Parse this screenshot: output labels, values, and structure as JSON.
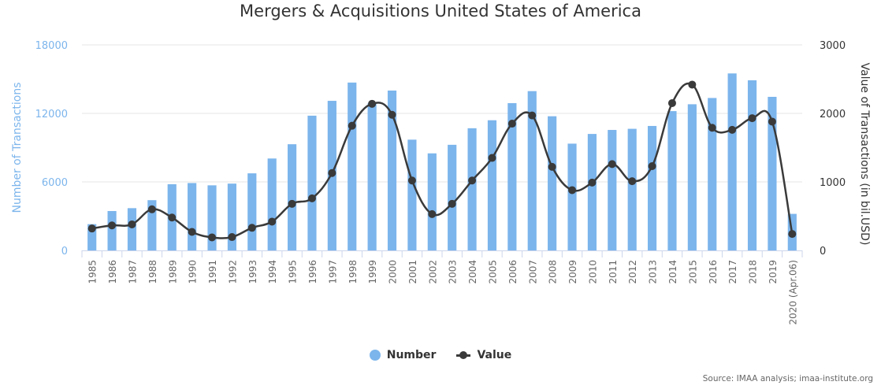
{
  "chart_data": {
    "type": "bar+line",
    "title": "Mergers & Acquisitions United States of America",
    "categories": [
      "1985",
      "1986",
      "1987",
      "1988",
      "1989",
      "1990",
      "1991",
      "1992",
      "1993",
      "1994",
      "1995",
      "1996",
      "1997",
      "1998",
      "1999",
      "2000",
      "2001",
      "2002",
      "2003",
      "2004",
      "2005",
      "2006",
      "2007",
      "2008",
      "2009",
      "2010",
      "2011",
      "2012",
      "2013",
      "2014",
      "2015",
      "2016",
      "2017",
      "2018",
      "2019",
      "2020 (Apr.06)"
    ],
    "y_left": {
      "label": "Number of Transactions",
      "ticks": [
        "0",
        "6000",
        "12000",
        "18000"
      ],
      "lim": [
        0,
        18000
      ]
    },
    "y_right": {
      "label": "Value of Transactions (in bil.USD)",
      "ticks": [
        "0",
        "1000",
        "2000",
        "3000"
      ],
      "lim": [
        0,
        3000
      ]
    },
    "series": [
      {
        "name": "Number",
        "type": "bar",
        "axis": "left",
        "color": "#7cb5ec",
        "values": [
          2300,
          3450,
          3700,
          4400,
          5800,
          5900,
          5700,
          5850,
          6750,
          8050,
          9300,
          11800,
          13100,
          14700,
          12900,
          14000,
          9700,
          8500,
          9250,
          10700,
          11400,
          12900,
          13950,
          11750,
          9350,
          10200,
          10550,
          10650,
          10900,
          12200,
          12800,
          13350,
          15500,
          14900,
          13450,
          3200
        ]
      },
      {
        "name": "Value",
        "type": "line",
        "axis": "right",
        "color": "#3a3a3a",
        "values": [
          320,
          365,
          380,
          600,
          480,
          270,
          190,
          195,
          330,
          420,
          680,
          760,
          1130,
          1820,
          2140,
          1980,
          1020,
          530,
          680,
          1020,
          1350,
          1850,
          1970,
          1220,
          880,
          990,
          1260,
          1010,
          1230,
          2150,
          2420,
          1790,
          1760,
          1930,
          1880,
          240
        ]
      }
    ],
    "grid": true,
    "legend_position": "bottom-center"
  },
  "legend": {
    "number_label": "Number",
    "value_label": "Value"
  },
  "source": "Source: IMAA analysis; imaa-institute.org"
}
